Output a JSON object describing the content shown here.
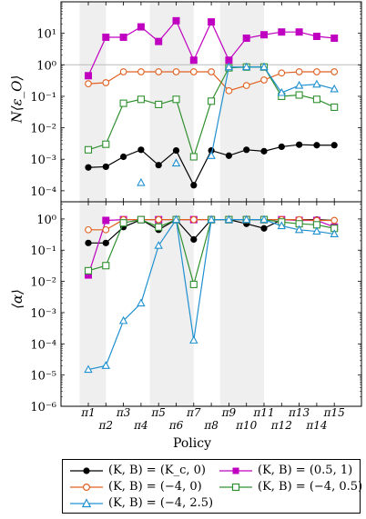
{
  "chart_data": [
    {
      "type": "line",
      "ylabel": "N⟨ε_O⟩",
      "yscale": "log",
      "ylim": [
        5e-05,
        100
      ],
      "yticks": [
        "10⁻⁴",
        "10⁻³",
        "10⁻²",
        "10⁻¹",
        "10⁰",
        "10¹"
      ],
      "reference_line": 1,
      "categories": [
        "π1",
        "π2",
        "π3",
        "π4",
        "π5",
        "π6",
        "π7",
        "π8",
        "π9",
        "π10",
        "π11",
        "π12",
        "π13",
        "π14",
        "π15"
      ],
      "series": [
        {
          "name": "(K,B) = (K_c,0)",
          "color": "#000000",
          "marker": "circle-filled",
          "values": [
            0.00055,
            0.00058,
            0.0012,
            0.002,
            0.00065,
            0.0019,
            0.00015,
            0.0019,
            0.0013,
            0.002,
            0.0018,
            0.0025,
            0.0029,
            0.0028,
            0.0028
          ]
        },
        {
          "name": "(K,B) = (0.5,1)",
          "color": "#c000c0",
          "marker": "square-filled",
          "values": [
            0.45,
            7.5,
            7.5,
            16,
            5.5,
            25,
            1.4,
            23,
            1.4,
            7.0,
            9,
            11,
            11,
            8,
            7
          ]
        },
        {
          "name": "(K,B) = (-4,0)",
          "color": "#e06020",
          "marker": "circle-open",
          "values": [
            0.25,
            0.27,
            0.6,
            0.6,
            0.6,
            0.6,
            0.6,
            0.6,
            0.15,
            0.22,
            0.33,
            0.55,
            0.6,
            0.6,
            0.6
          ]
        },
        {
          "name": "(K,B) = (-4,0.5)",
          "color": "#309030",
          "marker": "square-open",
          "values": [
            0.002,
            0.003,
            0.06,
            0.08,
            0.055,
            0.08,
            0.0012,
            0.07,
            0.8,
            0.85,
            0.85,
            0.1,
            0.11,
            0.08,
            0.045
          ]
        },
        {
          "name": "(K,B) = (-4,2.5)",
          "color": "#2090d0",
          "marker": "triangle-open",
          "values": [
            null,
            null,
            null,
            0.00018,
            null,
            0.00075,
            null,
            0.0013,
            0.85,
            0.85,
            0.85,
            0.13,
            0.22,
            0.24,
            0.17
          ]
        }
      ]
    },
    {
      "type": "line",
      "ylabel": "⟨α⟩",
      "yscale": "log",
      "ylim": [
        1e-06,
        3
      ],
      "yticks": [
        "10⁻⁶",
        "10⁻⁵",
        "10⁻⁴",
        "10⁻³",
        "10⁻²",
        "10⁻¹",
        "10⁰"
      ],
      "xlabel": "Policy",
      "categories": [
        "π1",
        "π2",
        "π3",
        "π4",
        "π5",
        "π6",
        "π7",
        "π8",
        "π9",
        "π10",
        "π11",
        "π12",
        "π13",
        "π14",
        "π15"
      ],
      "series": [
        {
          "name": "(K,B) = (K_c,0)",
          "color": "#000000",
          "marker": "circle-filled",
          "values": [
            0.17,
            0.17,
            0.55,
            0.95,
            0.45,
            0.95,
            0.22,
            0.95,
            0.95,
            0.7,
            0.5,
            0.95,
            0.95,
            0.95,
            0.9
          ]
        },
        {
          "name": "(K,B) = (0.5,1)",
          "color": "#c000c0",
          "marker": "square-filled",
          "values": [
            0.016,
            0.9,
            0.95,
            0.95,
            0.95,
            0.95,
            0.95,
            0.95,
            0.95,
            0.95,
            0.95,
            0.95,
            0.9,
            0.9,
            0.55
          ]
        },
        {
          "name": "(K,B) = (-4,0)",
          "color": "#e06020",
          "marker": "circle-open",
          "values": [
            0.45,
            0.45,
            0.95,
            0.95,
            0.95,
            0.95,
            0.95,
            0.95,
            0.95,
            0.95,
            0.95,
            0.95,
            0.95,
            0.9,
            0.9
          ]
        },
        {
          "name": "(K,B) = (-4,0.5)",
          "color": "#309030",
          "marker": "square-open",
          "values": [
            0.022,
            0.032,
            0.75,
            0.95,
            0.55,
            0.95,
            0.008,
            0.95,
            0.95,
            0.95,
            0.95,
            0.8,
            0.7,
            0.65,
            0.5
          ]
        },
        {
          "name": "(K,B) = (-4,2.5)",
          "color": "#2090d0",
          "marker": "triangle-open",
          "values": [
            1.5e-05,
            2e-05,
            0.00055,
            0.002,
            0.14,
            0.95,
            0.00013,
            0.95,
            0.95,
            0.95,
            0.95,
            0.6,
            0.45,
            0.4,
            0.33
          ]
        }
      ]
    }
  ],
  "xlabel": "Policy",
  "legend": {
    "placement": "bottom",
    "items": [
      {
        "label": "(K, B) = (K_c, 0)",
        "color": "#000000",
        "marker": "circle-filled"
      },
      {
        "label": "(K, B) = (0.5, 1)",
        "color": "#c000c0",
        "marker": "square-filled"
      },
      {
        "label": "(K, B) = (−4, 0)",
        "color": "#e06020",
        "marker": "circle-open"
      },
      {
        "label": "(K, B) = (−4, 0.5)",
        "color": "#309030",
        "marker": "square-open"
      },
      {
        "label": "(K, B) = (−4, 2.5)",
        "color": "#2090d0",
        "marker": "triangle-open"
      }
    ]
  }
}
